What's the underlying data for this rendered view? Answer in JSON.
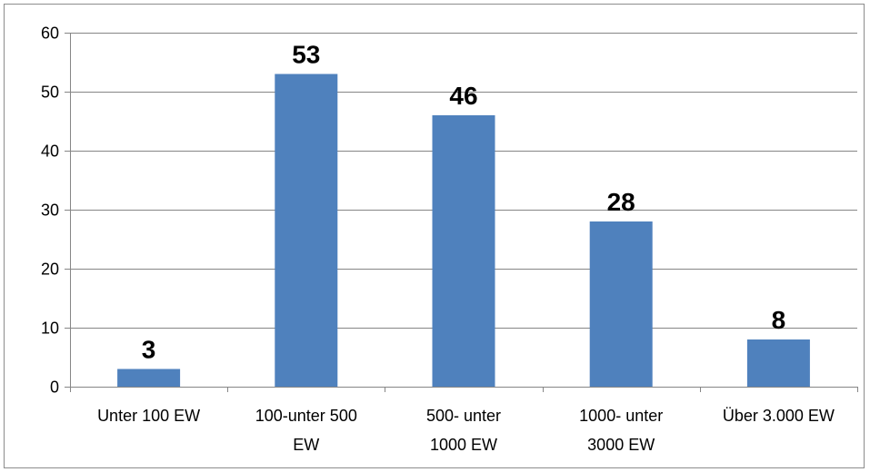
{
  "chart_data": {
    "type": "bar",
    "categories": [
      [
        "Unter 100 EW"
      ],
      [
        "100-unter 500",
        "EW"
      ],
      [
        "500- unter",
        "1000 EW"
      ],
      [
        "1000- unter",
        "3000 EW"
      ],
      [
        "Über 3.000 EW"
      ]
    ],
    "values": [
      3,
      53,
      46,
      28,
      8
    ],
    "ylim": [
      0,
      60
    ],
    "yticks": [
      0,
      10,
      20,
      30,
      40,
      50,
      60
    ],
    "grid": true,
    "legend": "none",
    "bar_color": "#4f81bd",
    "grid_color": "#868686"
  }
}
